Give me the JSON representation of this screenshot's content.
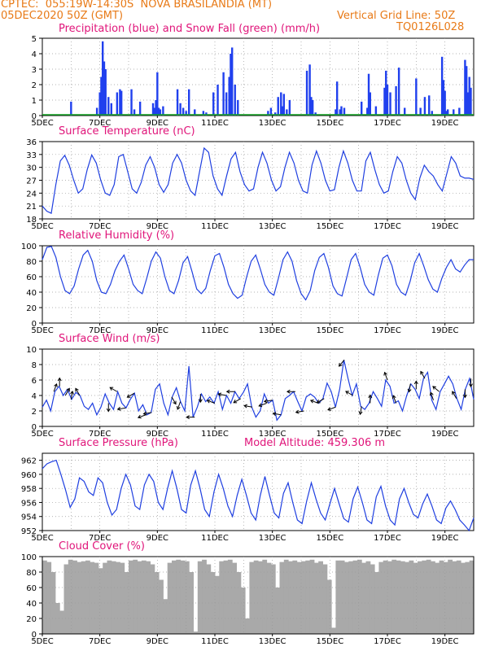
{
  "header": {
    "line1": "CPTEC:  055:19W-14:30S  NOVA BRASILANDIA (MT)",
    "line2": "05DEC2020 50Z (GMT)",
    "grid_note": "Vertical Grid Line: 50Z",
    "code": "TQ0126L028"
  },
  "colors": {
    "header": "#e87a17",
    "title": "#e0157a",
    "line": "#1f3fe0",
    "precip": "#2040ee",
    "snow": "#10a020",
    "cloud": "#a9a9a9"
  },
  "chart_data": [
    {
      "type": "bar",
      "title": "Precipitation (blue) and Snow Fall (green) (mm/h)",
      "ylim": [
        0,
        5
      ],
      "yticks": [
        0,
        1,
        2,
        3,
        4,
        5
      ],
      "xticks": [
        "5DEC",
        "7DEC",
        "9DEC",
        "11DEC",
        "13DEC",
        "15DEC",
        "17DEC",
        "19DEC"
      ],
      "xrange_days": [
        5,
        20
      ],
      "series": [
        {
          "name": "Precipitation",
          "x": [
            6.0,
            6.9,
            7.0,
            7.05,
            7.1,
            7.15,
            7.2,
            7.3,
            7.4,
            7.6,
            7.7,
            7.75,
            8.1,
            8.2,
            8.4,
            8.85,
            8.9,
            8.95,
            9.0,
            9.05,
            9.1,
            9.2,
            9.7,
            9.8,
            9.9,
            10.0,
            10.1,
            10.3,
            10.6,
            10.7,
            10.95,
            11.1,
            11.3,
            11.4,
            11.5,
            11.55,
            11.6,
            11.7,
            11.8,
            12.85,
            12.95,
            13.1,
            13.2,
            13.3,
            13.35,
            13.4,
            13.5,
            13.6,
            14.2,
            14.3,
            14.35,
            14.4,
            14.5,
            15.2,
            15.25,
            15.35,
            15.4,
            15.5,
            16.1,
            16.3,
            16.35,
            16.4,
            16.6,
            16.9,
            16.95,
            17.0,
            17.1,
            17.3,
            17.4,
            17.6,
            18.0,
            18.15,
            18.3,
            18.45,
            18.55,
            18.9,
            18.95,
            19.0,
            19.05,
            19.1,
            19.3,
            19.5,
            19.7,
            19.75,
            19.8,
            19.85,
            19.9
          ],
          "values": [
            0.9,
            0.5,
            1.5,
            2.5,
            4.8,
            3.5,
            3.0,
            1.2,
            0.8,
            1.5,
            1.7,
            1.6,
            1.7,
            0.4,
            0.9,
            0.8,
            0.5,
            1.0,
            2.8,
            0.5,
            0.4,
            0.6,
            1.7,
            0.8,
            0.5,
            0.3,
            1.7,
            0.4,
            0.3,
            0.2,
            1.5,
            2.0,
            2.8,
            1.5,
            2.5,
            4.0,
            4.4,
            2.0,
            1.0,
            0.3,
            0.5,
            0.2,
            1.2,
            1.5,
            0.6,
            1.4,
            0.4,
            1.0,
            2.9,
            3.3,
            1.2,
            1.0,
            0.2,
            0.4,
            2.2,
            0.4,
            0.6,
            0.5,
            0.9,
            0.5,
            2.7,
            1.5,
            0.6,
            1.8,
            2.9,
            2.0,
            1.5,
            1.9,
            3.1,
            0.5,
            2.4,
            0.5,
            1.2,
            1.3,
            0.3,
            3.8,
            2.3,
            1.6,
            0.3,
            0.4,
            0.4,
            0.5,
            3.6,
            3.2,
            1.5,
            2.5,
            1.8
          ]
        },
        {
          "name": "Snow Fall",
          "x": [
            5,
            20
          ],
          "values": [
            0,
            0
          ]
        }
      ]
    },
    {
      "type": "line",
      "title": "Surface Temperature (nC)",
      "ylim": [
        18,
        36
      ],
      "yticks": [
        18,
        21,
        24,
        27,
        30,
        33,
        36
      ],
      "xticks": [
        "5DEC",
        "7DEC",
        "9DEC",
        "11DEC",
        "13DEC",
        "15DEC",
        "17DEC",
        "19DEC"
      ],
      "xrange_days": [
        5,
        20
      ],
      "series": [
        {
          "name": "Temperature",
          "values": [
            21,
            19.8,
            19.3,
            26,
            31.5,
            32.8,
            30.5,
            27,
            24,
            25,
            29.5,
            32.9,
            31,
            27,
            24,
            23.5,
            26,
            32.5,
            33,
            29,
            25,
            24,
            26.5,
            30.5,
            32.5,
            30,
            26,
            24.2,
            26,
            31,
            33,
            31,
            27,
            24.5,
            23.5,
            29,
            34.5,
            33.5,
            28,
            25,
            23.5,
            28,
            32,
            33.5,
            29,
            26,
            24.5,
            25,
            30,
            33.5,
            31,
            27,
            24.5,
            25.5,
            30,
            33.5,
            31,
            27,
            24.5,
            24,
            30.5,
            33.8,
            31,
            27,
            24.5,
            24.8,
            30,
            33.8,
            31,
            27,
            24.5,
            24.5,
            31.5,
            33.5,
            29.5,
            26,
            24,
            24.5,
            29,
            32.5,
            31,
            27,
            24,
            22.5,
            27.5,
            30.5,
            29,
            28,
            26,
            24.5,
            28.5,
            32.5,
            31,
            28,
            27.5,
            27.5,
            27.2
          ]
        }
      ]
    },
    {
      "type": "line",
      "title": "Relative Humidity (%)",
      "ylim": [
        0,
        100
      ],
      "yticks": [
        0,
        20,
        40,
        60,
        80,
        100
      ],
      "xticks": [
        "5DEC",
        "7DEC",
        "9DEC",
        "11DEC",
        "13DEC",
        "15DEC",
        "17DEC",
        "19DEC"
      ],
      "xrange_days": [
        5,
        20
      ],
      "series": [
        {
          "name": "Relative Humidity",
          "values": [
            82,
            98,
            99,
            85,
            60,
            42,
            38,
            48,
            70,
            88,
            94,
            80,
            55,
            40,
            38,
            50,
            68,
            80,
            88,
            70,
            50,
            42,
            38,
            58,
            80,
            92,
            84,
            60,
            42,
            38,
            55,
            78,
            86,
            66,
            44,
            38,
            45,
            68,
            87,
            90,
            72,
            50,
            38,
            32,
            36,
            60,
            80,
            88,
            70,
            50,
            40,
            36,
            58,
            82,
            92,
            80,
            55,
            38,
            30,
            42,
            68,
            85,
            90,
            72,
            48,
            38,
            35,
            58,
            82,
            90,
            72,
            50,
            40,
            36,
            62,
            84,
            88,
            74,
            50,
            40,
            36,
            54,
            78,
            90,
            74,
            56,
            44,
            40,
            58,
            72,
            82,
            70,
            66,
            75,
            82,
            82
          ]
        }
      ]
    },
    {
      "type": "line",
      "title": "Surface Wind (m/s)",
      "ylim": [
        0,
        10
      ],
      "yticks": [
        0,
        2,
        4,
        6,
        8,
        10
      ],
      "xticks": [
        "5DEC",
        "7DEC",
        "9DEC",
        "11DEC",
        "13DEC",
        "15DEC",
        "17DEC",
        "19DEC"
      ],
      "xrange_days": [
        5,
        20
      ],
      "series": [
        {
          "name": "Wind Speed",
          "values": [
            2.5,
            3.4,
            2,
            4.5,
            5.2,
            4,
            4.8,
            3.5,
            4.4,
            4,
            2.6,
            2.2,
            3,
            1.5,
            2.5,
            4.2,
            3,
            2.2,
            4.5,
            3,
            2.4,
            3.5,
            4.3,
            2,
            2.8,
            1.5,
            1.8,
            4.8,
            5.5,
            3,
            1.5,
            3.8,
            5,
            3.2,
            2,
            7.8,
            1.2,
            2.5,
            4.2,
            3.2,
            3.8,
            3,
            4.5,
            2.2,
            4,
            3,
            4.5,
            3.6,
            4.4,
            5.5,
            2.5,
            1.2,
            2,
            4.2,
            3,
            3.4,
            0.8,
            1.5,
            3.6,
            4,
            4.5,
            3.2,
            2,
            3.8,
            4.2,
            3.8,
            3,
            3.6,
            5.6,
            4.5,
            2.5,
            4.8,
            8.6,
            6.2,
            4,
            5.5,
            2.6,
            2.2,
            3,
            4.5,
            3.6,
            2.6,
            6,
            5.2,
            3,
            3.3,
            2,
            4,
            5.5,
            4.8,
            3.6,
            6.2,
            7,
            3.4,
            2.2,
            4.5,
            5.5,
            6.5,
            5.5,
            3.6,
            2.2,
            4.8,
            6.2,
            3.5
          ]
        }
      ],
      "arrows_x": [
        5.4,
        5.6,
        5.8,
        6.0,
        6.3,
        7.3,
        7.6,
        7.9,
        8.2,
        8.6,
        8.8,
        9.5,
        9.8,
        10.3,
        10.5,
        11.0,
        11.4,
        11.7,
        11.9,
        12.3,
        12.8,
        13.0,
        13.3,
        13.8,
        14.1,
        14.6,
        14.8,
        15.2,
        15.5,
        15.8,
        16.1,
        16.4,
        17.0,
        17.3,
        17.8,
        18.0,
        18.3,
        18.6,
        18.8,
        19.4,
        19.7,
        19.9
      ],
      "arrows_dir_deg": [
        -70,
        -90,
        -60,
        -80,
        -120,
        90,
        -150,
        170,
        150,
        160,
        170,
        60,
        110,
        180,
        90,
        -160,
        -170,
        180,
        150,
        -170,
        160,
        170,
        -170,
        180,
        170,
        -160,
        150,
        160,
        130,
        -150,
        100,
        -90,
        -110,
        -110,
        100,
        -90,
        -120,
        -110,
        -140,
        -120,
        90,
        90
      ]
    },
    {
      "type": "line",
      "title": "Surface Pressure (hPa)",
      "annotation": "Model Altitude: 459.306 m",
      "ylim": [
        952,
        963
      ],
      "yticks": [
        952,
        954,
        956,
        958,
        960,
        962
      ],
      "xticks": [
        "5DEC",
        "7DEC",
        "9DEC",
        "11DEC",
        "13DEC",
        "15DEC",
        "17DEC",
        "19DEC"
      ],
      "xrange_days": [
        5,
        20
      ],
      "series": [
        {
          "name": "Pressure",
          "values": [
            960.8,
            961.5,
            961.8,
            962,
            960,
            957.8,
            955.3,
            956.5,
            959.5,
            959,
            957.5,
            957,
            959.5,
            958.8,
            956,
            954.2,
            955,
            958,
            960,
            958.5,
            955.5,
            955,
            958.5,
            960,
            959,
            956,
            955,
            958,
            960.5,
            958,
            955,
            954.5,
            958.5,
            960.5,
            958,
            955,
            954,
            957.5,
            960,
            958,
            955.5,
            954,
            957,
            959.3,
            957,
            954.5,
            953.5,
            957,
            959.7,
            957,
            954.5,
            953.8,
            957.3,
            958.8,
            956,
            953.5,
            953,
            956.2,
            958.8,
            956.5,
            954.5,
            953.5,
            955.8,
            958,
            955.8,
            953.7,
            953.2,
            956.5,
            958.2,
            956,
            953.5,
            953,
            956.8,
            958.3,
            955.5,
            953.5,
            952.8,
            956.5,
            958,
            956,
            954.3,
            953.8,
            955.8,
            957.2,
            955.5,
            953.5,
            953,
            955.2,
            956.2,
            955,
            953.5,
            952.8,
            952,
            953.8
          ]
        }
      ]
    },
    {
      "type": "bar",
      "title": "Cloud Cover (%)",
      "ylim": [
        0,
        100
      ],
      "yticks": [
        0,
        20,
        40,
        60,
        80,
        100
      ],
      "xticks": [
        "5DEC",
        "7DEC",
        "9DEC",
        "11DEC",
        "13DEC",
        "15DEC",
        "17DEC",
        "19DEC"
      ],
      "xrange_days": [
        5,
        20
      ],
      "series": [
        {
          "name": "Cloud Cover",
          "values": [
            95,
            93,
            80,
            40,
            30,
            90,
            96,
            95,
            93,
            94,
            95,
            93,
            92,
            85,
            92,
            95,
            94,
            93,
            92,
            80,
            95,
            96,
            94,
            95,
            94,
            90,
            80,
            70,
            45,
            92,
            95,
            96,
            95,
            94,
            80,
            3,
            94,
            96,
            90,
            80,
            75,
            94,
            95,
            96,
            92,
            80,
            60,
            20,
            93,
            95,
            94,
            96,
            92,
            90,
            60,
            93,
            96,
            94,
            95,
            93,
            94,
            95,
            96,
            92,
            94,
            90,
            70,
            8,
            95,
            95,
            93,
            94,
            95,
            96,
            92,
            94,
            90,
            80,
            93,
            95,
            94,
            96,
            95,
            94,
            93,
            95,
            92,
            94,
            95,
            96,
            94,
            92,
            95,
            93,
            96,
            94,
            95,
            92,
            93,
            95
          ]
        }
      ]
    }
  ]
}
